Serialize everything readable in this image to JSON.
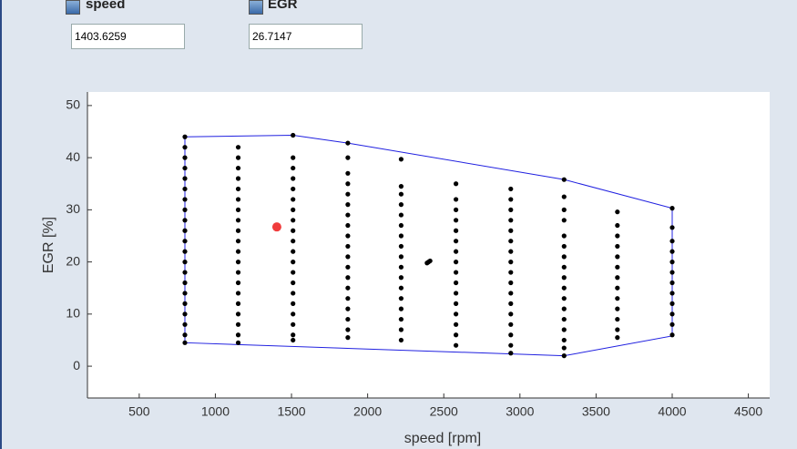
{
  "inputs": [
    {
      "label": "speed",
      "value": "1403.6259"
    },
    {
      "label": "EGR",
      "value": "26.7147"
    }
  ],
  "chart_data": {
    "type": "scatter",
    "xlabel": "speed [rpm]",
    "ylabel": "EGR [%]",
    "xlim": [
      160,
      4640
    ],
    "ylim": [
      -6.1,
      52.6
    ],
    "xticks": [
      500,
      1000,
      1500,
      2000,
      2500,
      3000,
      3500,
      4000,
      4500
    ],
    "yticks": [
      0,
      10,
      20,
      30,
      40,
      50
    ],
    "series": [
      {
        "color": "#000000",
        "x": [
          800,
          800,
          800,
          800,
          800,
          800,
          800,
          800,
          800,
          800,
          800,
          800,
          800,
          800,
          800,
          800,
          800,
          800,
          800,
          800,
          800,
          1150,
          1150,
          1150,
          1150,
          1150,
          1150,
          1150,
          1150,
          1150,
          1150,
          1150,
          1150,
          1150,
          1150,
          1150,
          1150,
          1150,
          1150,
          1150,
          1150,
          1510,
          1510,
          1510,
          1510,
          1510,
          1510,
          1510,
          1510,
          1510,
          1510,
          1510,
          1510,
          1510,
          1510,
          1510,
          1510,
          1510,
          1510,
          1510,
          1510,
          1870,
          1870,
          1870,
          1870,
          1870,
          1870,
          1870,
          1870,
          1870,
          1870,
          1870,
          1870,
          1870,
          1870,
          1870,
          1870,
          1870,
          1870,
          1870,
          2220,
          2220,
          2220,
          2220,
          2220,
          2220,
          2220,
          2220,
          2220,
          2220,
          2220,
          2220,
          2220,
          2220,
          2220,
          2220,
          2220,
          2390,
          2400,
          2410,
          2580,
          2580,
          2580,
          2580,
          2580,
          2580,
          2580,
          2580,
          2580,
          2580,
          2580,
          2580,
          2580,
          2580,
          2580,
          2580,
          2940,
          2940,
          2940,
          2940,
          2940,
          2940,
          2940,
          2940,
          2940,
          2940,
          2940,
          2940,
          2940,
          2940,
          2940,
          2940,
          2940,
          3290,
          3290,
          3290,
          3290,
          3290,
          3290,
          3290,
          3290,
          3290,
          3290,
          3290,
          3290,
          3290,
          3290,
          3290,
          3290,
          3290,
          3640,
          3640,
          3640,
          3640,
          3640,
          3640,
          3640,
          3640,
          3640,
          3640,
          3640,
          3640,
          3640,
          4000,
          4000,
          4000,
          4000,
          4000,
          4000,
          4000,
          4000,
          4000,
          4000,
          4000,
          4000
        ],
        "values": [
          4.5,
          6,
          8,
          10,
          12,
          14,
          16,
          18,
          20,
          22,
          24,
          26,
          28,
          30,
          32,
          34,
          36,
          38,
          40,
          42,
          44,
          4.5,
          6,
          8,
          10,
          12,
          14,
          16,
          18,
          20,
          22,
          24,
          26,
          28,
          30,
          32,
          34,
          36,
          38,
          40,
          42,
          5,
          6,
          8,
          10,
          12,
          14,
          16,
          18,
          20,
          22,
          24,
          26,
          28,
          30,
          32,
          34,
          36,
          38,
          40,
          44.3,
          5.5,
          7,
          9,
          11,
          13,
          15,
          17,
          19,
          21,
          23,
          25,
          27,
          29,
          31,
          33,
          35,
          37,
          40,
          42.8,
          5,
          7,
          9,
          11,
          13,
          15,
          17,
          19,
          21,
          23,
          25,
          27,
          29,
          31,
          33,
          34.5,
          39.7,
          19.8,
          20,
          20.2,
          4,
          6,
          8,
          10,
          12,
          14,
          16,
          18,
          20,
          22,
          24,
          26,
          28,
          30,
          32,
          35,
          2.5,
          4,
          6,
          8,
          10,
          12,
          14,
          16,
          18,
          20,
          22,
          24,
          26,
          28,
          30,
          32,
          34,
          2,
          3.5,
          5,
          7,
          9,
          11,
          13,
          15,
          17,
          19,
          21,
          23,
          25,
          28,
          30,
          32.5,
          35.8,
          5.5,
          7,
          9,
          11,
          13,
          15,
          17,
          19,
          21,
          23,
          25,
          27,
          29.6,
          6,
          8,
          10,
          12,
          14,
          16,
          18,
          20,
          22,
          24,
          26.6,
          30.3
        ]
      }
    ],
    "boundary": {
      "color": "#2020e0",
      "x": [
        800,
        1510,
        1870,
        3290,
        4000,
        4000,
        3290,
        800,
        800
      ],
      "values": [
        44,
        44.3,
        42.8,
        35.8,
        30.3,
        5.8,
        2,
        4.5,
        44
      ]
    },
    "point": {
      "color": "#f03c3c",
      "x": 1403.6259,
      "value": 26.7147
    }
  }
}
